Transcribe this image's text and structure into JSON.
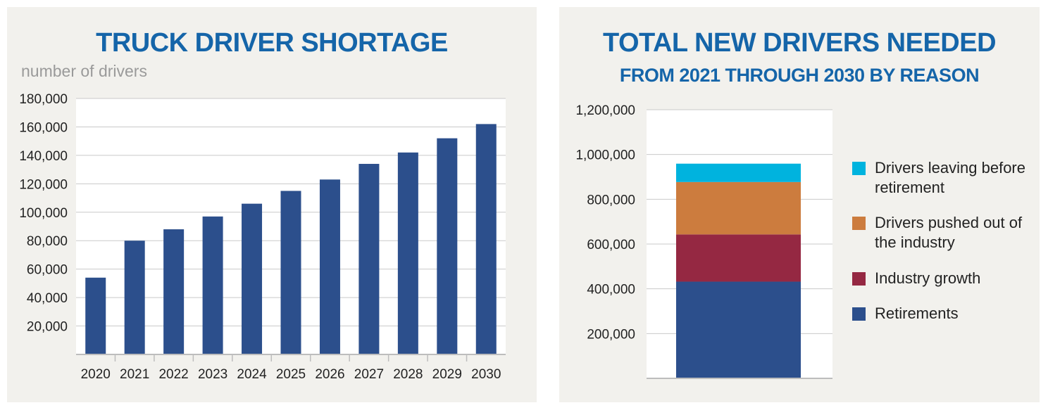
{
  "chart_data": [
    {
      "type": "bar",
      "title": "TRUCK DRIVER SHORTAGE",
      "ylabel": "number of drivers",
      "categories": [
        "2020",
        "2021",
        "2022",
        "2023",
        "2024",
        "2025",
        "2026",
        "2027",
        "2028",
        "2029",
        "2030"
      ],
      "values": [
        54000,
        80000,
        88000,
        97000,
        106000,
        115000,
        123000,
        134000,
        142000,
        152000,
        162000
      ],
      "ylim": [
        0,
        180000
      ],
      "yticks": [
        20000,
        40000,
        60000,
        80000,
        100000,
        120000,
        140000,
        160000,
        180000
      ],
      "ytick_labels": [
        "20,000",
        "40,000",
        "60,000",
        "80,000",
        "100,000",
        "120,000",
        "140,000",
        "160,000",
        "180,000"
      ],
      "grid": true,
      "color": "#2c4f8c"
    },
    {
      "type": "bar",
      "stacked": true,
      "title": "TOTAL NEW DRIVERS NEEDED",
      "subtitle": "FROM 2021 THROUGH 2030 BY REASON",
      "ylim": [
        0,
        1200000
      ],
      "yticks": [
        200000,
        400000,
        600000,
        800000,
        1000000,
        1200000
      ],
      "ytick_labels": [
        "200,000",
        "400,000",
        "600,000",
        "800,000",
        "1,000,000",
        "1,200,000"
      ],
      "grid": true,
      "legend": "right",
      "series": [
        {
          "name": "Retirements",
          "values": [
            432000
          ],
          "color": "#2c4f8c"
        },
        {
          "name": "Industry growth",
          "values": [
            211000
          ],
          "color": "#952842"
        },
        {
          "name": "Drivers pushed out of the industry",
          "values": [
            234000
          ],
          "color": "#cc7c3e"
        },
        {
          "name": "Drivers leaving before retirement",
          "values": [
            82000
          ],
          "color": "#00b3de"
        }
      ],
      "legend_entries": [
        {
          "label": "Drivers leaving before retirement",
          "color": "#00b3de"
        },
        {
          "label": "Drivers pushed out of the industry",
          "color": "#cc7c3e"
        },
        {
          "label": "Industry growth",
          "color": "#952842"
        },
        {
          "label": "Retirements",
          "color": "#2c4f8c"
        }
      ]
    }
  ]
}
